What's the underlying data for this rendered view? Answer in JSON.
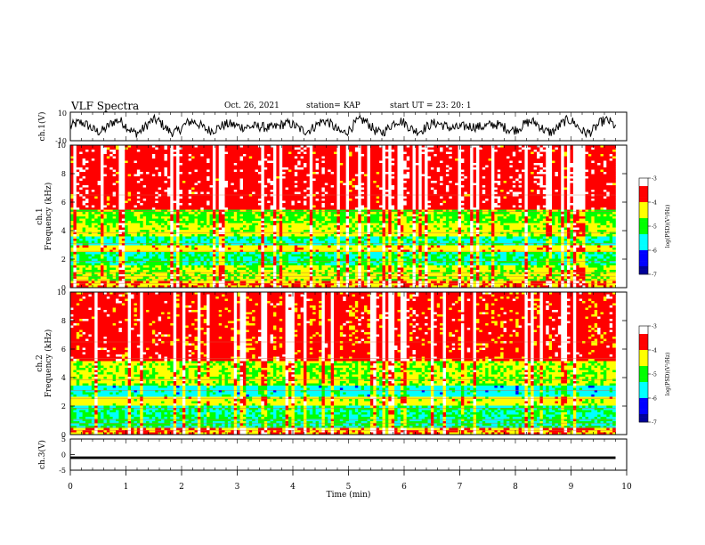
{
  "header": {
    "title": "VLF Spectra",
    "date": "Oct. 26, 2021",
    "station": "station= KAP",
    "start": "start  UT  =   23: 20: 1"
  },
  "colors": {
    "colormap": [
      "#000099",
      "#0000ff",
      "#00ffff",
      "#00ff00",
      "#ffff00",
      "#ff0000",
      "#ffffff"
    ],
    "trace": "#000000",
    "background": "#ffffff"
  },
  "chart_data": [
    {
      "type": "line",
      "name": "ch1-waveform",
      "ylabel": "ch.1(V)",
      "ylim": [
        -10,
        10
      ],
      "ytick_labels": [
        "10",
        "-10"
      ],
      "xlim": [
        0,
        10
      ],
      "description_values": {
        "mean": 0,
        "range": [
          -8,
          8
        ]
      }
    },
    {
      "type": "heatmap",
      "name": "ch1-spectrogram",
      "ylabel": "ch.1\nFrequency (kHz)",
      "ylim": [
        0,
        10
      ],
      "ytick_labels": [
        "0",
        "2",
        "4",
        "6",
        "8",
        "10"
      ],
      "xlim": [
        0,
        9.8
      ],
      "band_levels": [
        {
          "f": [
            0,
            0.5
          ],
          "level": -4.0
        },
        {
          "f": [
            0.5,
            1.5
          ],
          "level": -4.6
        },
        {
          "f": [
            1.5,
            2.5
          ],
          "level": -5.3
        },
        {
          "f": [
            2.5,
            3.0
          ],
          "level": -4.3
        },
        {
          "f": [
            3.0,
            3.6
          ],
          "level": -5.4
        },
        {
          "f": [
            3.6,
            4.6
          ],
          "level": -4.5
        },
        {
          "f": [
            4.6,
            5.4
          ],
          "level": -4.8
        },
        {
          "f": [
            5.4,
            10
          ],
          "level": -3.6
        }
      ],
      "colorbar": {
        "label": "log(PSD)(V²/Hz)",
        "range": [
          -7,
          -3
        ],
        "ticks": [
          "-3",
          "-4",
          "-5",
          "-6",
          "-7"
        ]
      }
    },
    {
      "type": "heatmap",
      "name": "ch2-spectrogram",
      "ylabel": "ch.2\nFrequency (kHz)",
      "ylim": [
        0,
        10
      ],
      "ytick_labels": [
        "0",
        "2",
        "4",
        "6",
        "8",
        "10"
      ],
      "xlim": [
        0,
        9.8
      ],
      "band_levels": [
        {
          "f": [
            0,
            0.4
          ],
          "level": -4.0
        },
        {
          "f": [
            0.4,
            2.0
          ],
          "level": -5.3
        },
        {
          "f": [
            2.0,
            2.6
          ],
          "level": -4.4
        },
        {
          "f": [
            2.6,
            3.4
          ],
          "level": -5.6
        },
        {
          "f": [
            3.4,
            5.2
          ],
          "level": -4.6
        },
        {
          "f": [
            5.2,
            10
          ],
          "level": -3.7
        }
      ],
      "colorbar": {
        "label": "log(PSD)(V²/Hz)",
        "range": [
          -7,
          -3
        ],
        "ticks": [
          "-3",
          "-4",
          "-5",
          "-6",
          "-7"
        ]
      }
    },
    {
      "type": "line",
      "name": "ch3-waveform",
      "ylabel": "ch.3(V)",
      "ylim": [
        -5,
        5
      ],
      "ytick_labels": [
        "5",
        "0",
        "-5"
      ],
      "xlim": [
        0,
        10
      ],
      "description_values": {
        "mean": -1,
        "range": [
          -1.4,
          -0.6
        ]
      }
    }
  ],
  "xaxis": {
    "label": "Time (min)",
    "ticks": [
      "0",
      "1",
      "2",
      "3",
      "4",
      "5",
      "6",
      "7",
      "8",
      "9",
      "10"
    ]
  }
}
